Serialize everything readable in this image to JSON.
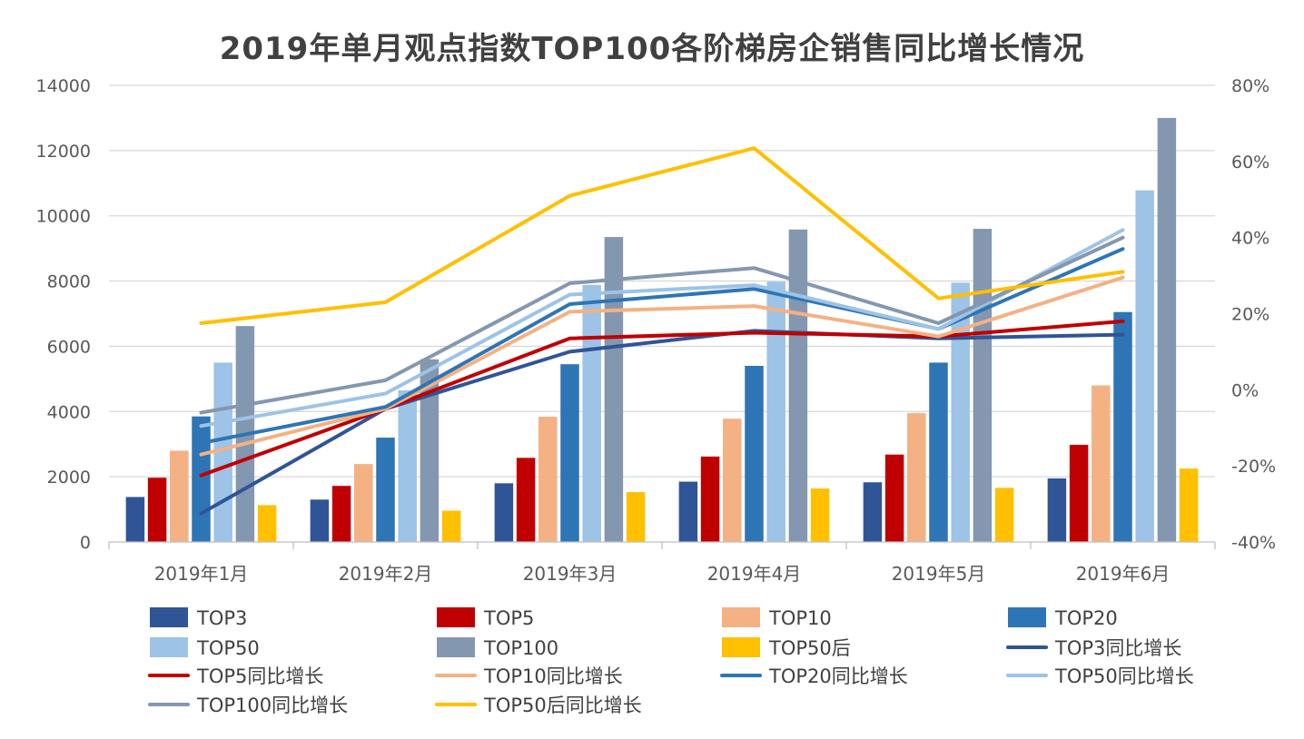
{
  "chart_data": {
    "type": "bar",
    "title": "2019年单月观点指数TOP100各阶梯房企销售同比增长情况",
    "categories": [
      "2019年1月",
      "2019年2月",
      "2019年3月",
      "2019年4月",
      "2019年5月",
      "2019年6月"
    ],
    "ylim": [
      0,
      14000
    ],
    "y_ticks": [
      0,
      2000,
      4000,
      6000,
      8000,
      10000,
      12000,
      14000
    ],
    "y2lim": [
      -40,
      80
    ],
    "y2_ticks": [
      "-40%",
      "-20%",
      "0%",
      "20%",
      "40%",
      "60%",
      "80%"
    ],
    "grid": true,
    "legend_position": "bottom",
    "bar_series": [
      {
        "name": "TOP3",
        "color": "#2F5597",
        "values": [
          1380,
          1300,
          1800,
          1850,
          1830,
          1950
        ]
      },
      {
        "name": "TOP5",
        "color": "#C00000",
        "values": [
          1970,
          1720,
          2580,
          2620,
          2680,
          2980
        ]
      },
      {
        "name": "TOP10",
        "color": "#F4B183",
        "values": [
          2800,
          2390,
          3840,
          3780,
          3950,
          4800
        ]
      },
      {
        "name": "TOP20",
        "color": "#2E75B6",
        "values": [
          3850,
          3200,
          5450,
          5400,
          5500,
          7050
        ]
      },
      {
        "name": "TOP50",
        "color": "#9DC3E6",
        "values": [
          5500,
          4650,
          7880,
          7980,
          7950,
          10780
        ]
      },
      {
        "name": "TOP100",
        "color": "#8497B0",
        "values": [
          6620,
          5600,
          9350,
          9580,
          9600,
          13000
        ]
      },
      {
        "name": "TOP50后",
        "color": "#FFC000",
        "values": [
          1130,
          960,
          1530,
          1640,
          1660,
          2250
        ]
      }
    ],
    "line_series": [
      {
        "name": "TOP3同比增长",
        "color": "#2F5597",
        "values": [
          -32.5,
          -5,
          10,
          15.5,
          13.5,
          14.5
        ]
      },
      {
        "name": "TOP5同比增长",
        "color": "#C00000",
        "values": [
          -22.5,
          -5,
          13.5,
          15,
          14,
          18
        ]
      },
      {
        "name": "TOP10同比增长",
        "color": "#F4B183",
        "values": [
          -17,
          -5,
          20.5,
          22,
          14,
          29.5
        ]
      },
      {
        "name": "TOP20同比增长",
        "color": "#2E75B6",
        "values": [
          -14,
          -4.5,
          22.5,
          26.5,
          16,
          37
        ]
      },
      {
        "name": "TOP50同比增长",
        "color": "#9DC3E6",
        "values": [
          -9.5,
          -1,
          25,
          27.5,
          16,
          42
        ]
      },
      {
        "name": "TOP100同比增长",
        "color": "#8497B0",
        "values": [
          -6,
          2.5,
          28,
          32,
          17.5,
          40
        ]
      },
      {
        "name": "TOP50后同比增长",
        "color": "#FFC000",
        "values": [
          17.5,
          23,
          51,
          63.5,
          24,
          31
        ]
      }
    ]
  }
}
